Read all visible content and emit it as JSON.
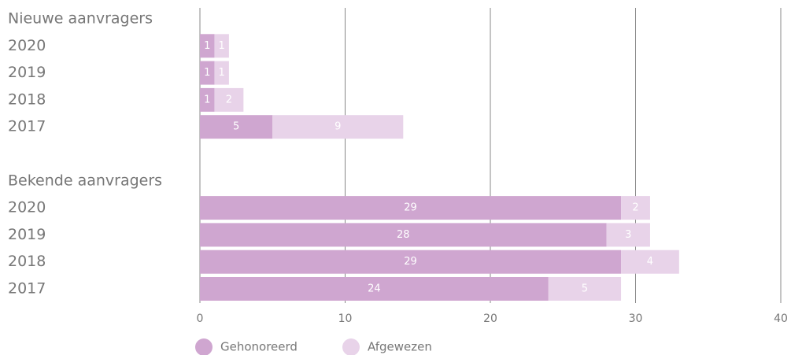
{
  "chart_data": {
    "type": "bar",
    "orientation": "horizontal",
    "stacked": true,
    "series": [
      {
        "name": "Gehonoreerd",
        "color": "#cfa6d0"
      },
      {
        "name": "Afgewezen",
        "color": "#e8d3e9"
      }
    ],
    "groups": [
      {
        "title": "Nieuwe aanvragers",
        "categories": [
          "2020",
          "2019",
          "2018",
          "2017"
        ],
        "values": [
          [
            1,
            1,
            1,
            5
          ],
          [
            1,
            1,
            2,
            9
          ]
        ]
      },
      {
        "title": "Bekende aanvragers",
        "categories": [
          "2020",
          "2019",
          "2018",
          "2017"
        ],
        "values": [
          [
            29,
            28,
            29,
            24
          ],
          [
            2,
            3,
            4,
            5
          ]
        ]
      }
    ],
    "xlim": [
      0,
      40
    ],
    "xticks": [
      0,
      10,
      20,
      30,
      40
    ],
    "grid": true,
    "legend": "bottom"
  }
}
